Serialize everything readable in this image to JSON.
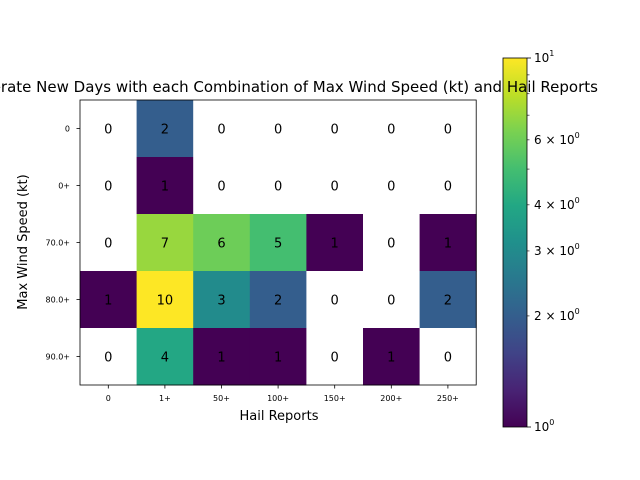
{
  "chart_data": {
    "type": "heatmap",
    "title": "Moderate New Days with each Combination of Max Wind Speed (kt) and Hail Reports",
    "xlabel": "Hail Reports",
    "ylabel": "Max Wind Speed (kt)",
    "x_categories": [
      "0",
      "1+",
      "50+",
      "100+",
      "150+",
      "200+",
      "250+"
    ],
    "y_categories": [
      "0",
      "0+",
      "70.0+",
      "80.0+",
      "90.0+"
    ],
    "values": [
      [
        0,
        2,
        0,
        0,
        0,
        0,
        0
      ],
      [
        0,
        1,
        0,
        0,
        0,
        0,
        0
      ],
      [
        0,
        7,
        6,
        5,
        1,
        0,
        1
      ],
      [
        1,
        10,
        3,
        2,
        0,
        0,
        2
      ],
      [
        0,
        4,
        1,
        1,
        0,
        1,
        0
      ]
    ],
    "color_scale": "log",
    "colormap": "viridis",
    "zero_color": "#ffffff",
    "colorbar": {
      "range": [
        1,
        10
      ],
      "major_ticks": [
        {
          "value": 1,
          "mantissa": "10",
          "exp": "0"
        },
        {
          "value": 10,
          "mantissa": "10",
          "exp": "1"
        }
      ],
      "minor_labels": [
        {
          "value": 2,
          "mantissa": "2 × 10",
          "exp": "0"
        },
        {
          "value": 3,
          "mantissa": "3 × 10",
          "exp": "0"
        },
        {
          "value": 4,
          "mantissa": "4 × 10",
          "exp": "0"
        },
        {
          "value": 6,
          "mantissa": "6 × 10",
          "exp": "0"
        }
      ],
      "minor_ticks": [
        2,
        3,
        4,
        5,
        6,
        7,
        8,
        9
      ]
    }
  }
}
